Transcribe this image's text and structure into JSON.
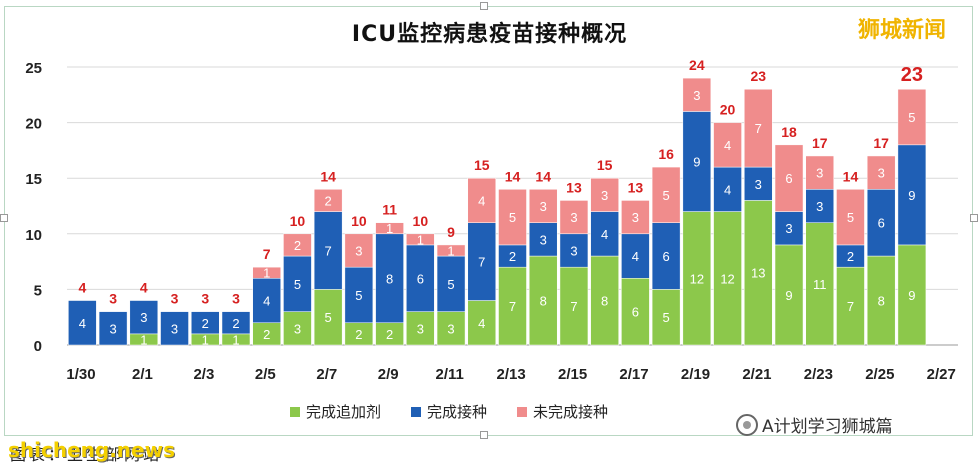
{
  "chart_data": {
    "type": "bar",
    "stacked": true,
    "title": "ICU监控病患疫苗接种概况",
    "categories": [
      "1/30",
      "1/31",
      "2/1",
      "2/2",
      "2/3",
      "2/4",
      "2/5",
      "2/6",
      "2/7",
      "2/8",
      "2/9",
      "2/10",
      "2/11",
      "2/12",
      "2/13",
      "2/14",
      "2/15",
      "2/16",
      "2/17",
      "2/18",
      "2/19",
      "2/20",
      "2/21",
      "2/22",
      "2/23",
      "2/24",
      "2/25",
      "2/26"
    ],
    "xtick_labels": [
      "1/30",
      "2/1",
      "2/3",
      "2/5",
      "2/7",
      "2/9",
      "2/11",
      "2/13",
      "2/15",
      "2/17",
      "2/19",
      "2/21",
      "2/23",
      "2/25",
      "2/27"
    ],
    "series": [
      {
        "name": "完成追加剂",
        "color": "#8cc84b",
        "values": [
          0,
          0,
          1,
          0,
          1,
          1,
          2,
          3,
          5,
          2,
          2,
          3,
          3,
          4,
          7,
          8,
          7,
          8,
          6,
          5,
          12,
          12,
          13,
          9,
          11,
          7,
          8,
          9
        ]
      },
      {
        "name": "完成接种",
        "color": "#1f5fb5",
        "values": [
          4,
          3,
          3,
          3,
          2,
          2,
          4,
          5,
          7,
          5,
          8,
          6,
          5,
          7,
          2,
          3,
          3,
          4,
          4,
          6,
          9,
          4,
          3,
          3,
          3,
          2,
          6,
          9
        ]
      },
      {
        "name": "未完成接种",
        "color": "#f08c8c",
        "values": [
          0,
          0,
          0,
          0,
          0,
          0,
          1,
          2,
          2,
          3,
          1,
          1,
          1,
          4,
          5,
          3,
          3,
          3,
          3,
          5,
          3,
          4,
          7,
          6,
          3,
          5,
          3,
          5
        ]
      }
    ],
    "segment_labels": {
      "完成追加剂": [
        null,
        null,
        1,
        null,
        1,
        1,
        2,
        3,
        5,
        2,
        2,
        3,
        3,
        4,
        7,
        8,
        7,
        8,
        6,
        5,
        12,
        12,
        13,
        9,
        11,
        7,
        8,
        9
      ],
      "完成接种": [
        4,
        3,
        3,
        3,
        2,
        2,
        4,
        5,
        7,
        5,
        8,
        6,
        5,
        7,
        2,
        3,
        3,
        4,
        4,
        6,
        9,
        4,
        3,
        3,
        3,
        2,
        6,
        9
      ],
      "未完成接种": [
        null,
        null,
        null,
        null,
        null,
        null,
        1,
        2,
        2,
        3,
        1,
        1,
        1,
        4,
        5,
        3,
        3,
        3,
        3,
        5,
        3,
        4,
        7,
        6,
        3,
        5,
        3,
        5
      ]
    },
    "totals": [
      4,
      3,
      4,
      3,
      3,
      3,
      7,
      10,
      14,
      10,
      11,
      10,
      9,
      15,
      14,
      14,
      13,
      15,
      13,
      16,
      24,
      20,
      23,
      18,
      17,
      14,
      17,
      23
    ],
    "ylim": [
      0,
      25
    ],
    "yticks": [
      0,
      5,
      10,
      15,
      20,
      25
    ],
    "grid": true,
    "legend_position": "bottom"
  },
  "brand": "狮城新闻",
  "watermark": "A计划学习狮城篇",
  "caption": "图表：卫生部网站",
  "site": "shicheng.news"
}
